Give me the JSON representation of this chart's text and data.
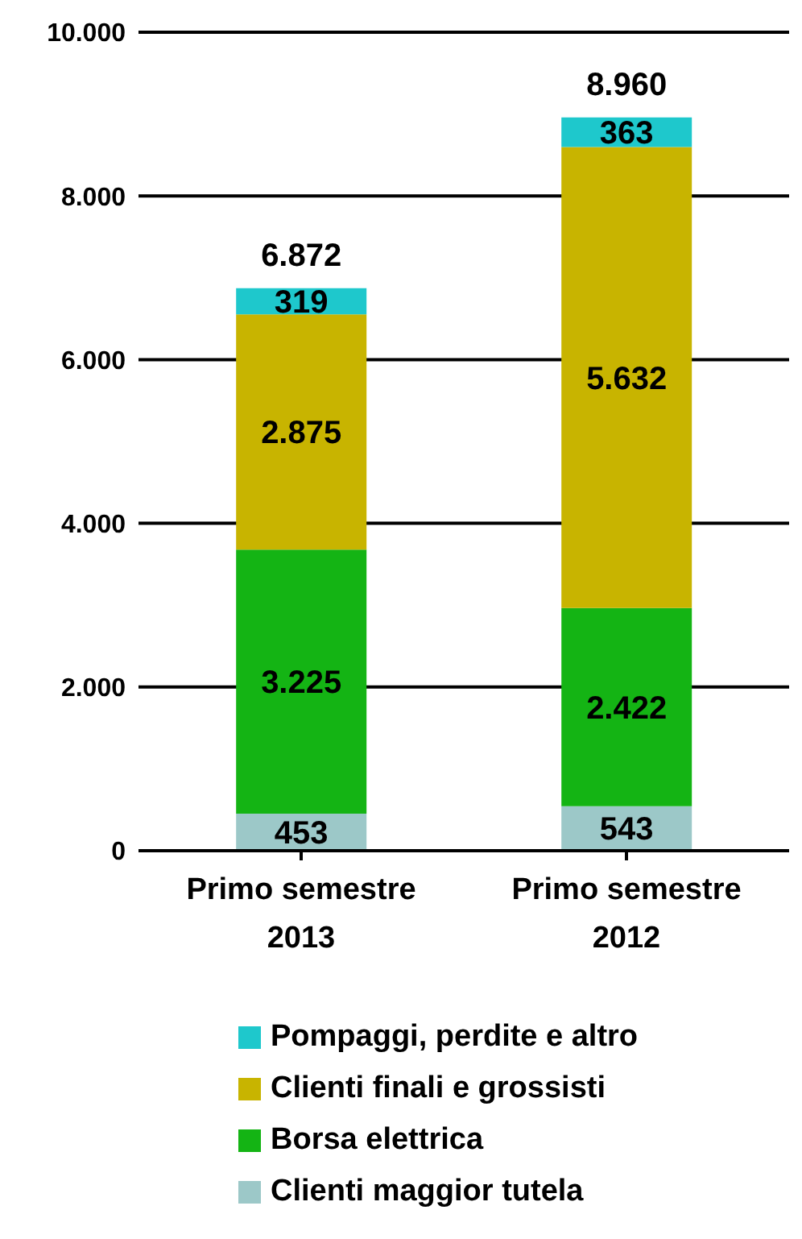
{
  "chart_data": {
    "type": "bar",
    "stacked": true,
    "categories": [
      "Primo semestre 2013",
      "Primo semestre 2012"
    ],
    "series": [
      {
        "name": "Clienti maggior tutela",
        "color": "#9cc8c8",
        "values": [
          453,
          543
        ],
        "value_labels": [
          "453",
          "543"
        ]
      },
      {
        "name": "Borsa elettrica",
        "color": "#14b414",
        "values": [
          3225,
          2422
        ],
        "value_labels": [
          "3.225",
          "2.422"
        ]
      },
      {
        "name": "Clienti finali e grossisti",
        "color": "#c8b400",
        "values": [
          2875,
          5632
        ],
        "value_labels": [
          "2.875",
          "5.632"
        ]
      },
      {
        "name": "Pompaggi, perdite e altro",
        "color": "#1ec8cc",
        "values": [
          319,
          363
        ],
        "value_labels": [
          "319",
          "363"
        ]
      }
    ],
    "totals": [
      "6.872",
      "8.960"
    ],
    "ylim": [
      0,
      10000
    ],
    "yticks": [
      {
        "value": 0,
        "label": "0"
      },
      {
        "value": 2000,
        "label": "2.000"
      },
      {
        "value": 4000,
        "label": "4.000"
      },
      {
        "value": 6000,
        "label": "6.000"
      },
      {
        "value": 8000,
        "label": "8.000"
      },
      {
        "value": 10000,
        "label": "10.000"
      }
    ],
    "grid": "y",
    "legend": "bottom"
  }
}
